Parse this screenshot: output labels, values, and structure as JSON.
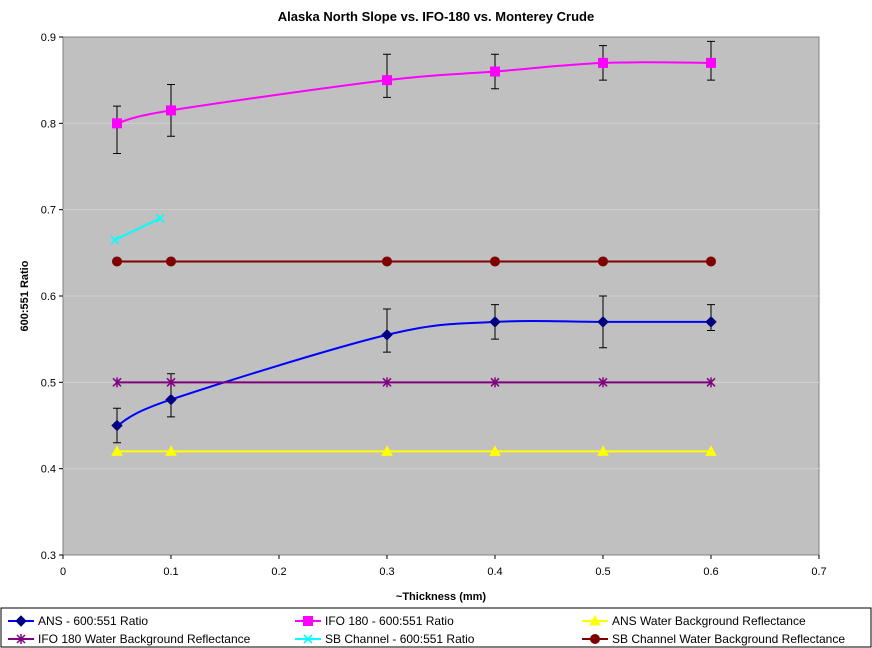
{
  "chart_data": {
    "type": "line",
    "title": "Alaska North Slope vs. IFO-180 vs. Monterey Crude",
    "xlabel": "~Thickness (mm)",
    "ylabel": "600:551 Ratio",
    "xlim": [
      0,
      0.7
    ],
    "ylim": [
      0.3,
      0.9
    ],
    "x_ticks": [
      "0",
      "0.1",
      "0.2",
      "0.3",
      "0.4",
      "0.5",
      "0.6",
      "0.7"
    ],
    "y_ticks": [
      "0.3",
      "0.4",
      "0.5",
      "0.6",
      "0.7",
      "0.8",
      "0.9"
    ],
    "grid": "horizontal",
    "legend_position": "bottom",
    "plot_background": "#c0c0c0",
    "series": [
      {
        "name": "ANS - 600:551 Ratio",
        "color": "#000080",
        "line_color": "#0000ff",
        "marker": "diamond",
        "smooth": true,
        "x": [
          0.05,
          0.1,
          0.3,
          0.4,
          0.5,
          0.6
        ],
        "y": [
          0.45,
          0.48,
          0.555,
          0.57,
          0.57,
          0.57
        ],
        "err_low": [
          0.43,
          0.46,
          0.535,
          0.55,
          0.54,
          0.56
        ],
        "err_high": [
          0.47,
          0.51,
          0.585,
          0.59,
          0.6,
          0.59
        ]
      },
      {
        "name": "IFO 180 - 600:551 Ratio",
        "color": "#ff00ff",
        "line_color": "#ff00ff",
        "marker": "square",
        "smooth": true,
        "x": [
          0.05,
          0.1,
          0.3,
          0.4,
          0.5,
          0.6
        ],
        "y": [
          0.8,
          0.815,
          0.85,
          0.86,
          0.87,
          0.87
        ],
        "err_low": [
          0.765,
          0.785,
          0.83,
          0.84,
          0.85,
          0.85
        ],
        "err_high": [
          0.82,
          0.845,
          0.88,
          0.88,
          0.89,
          0.895
        ]
      },
      {
        "name": "ANS Water Background Reflectance",
        "color": "#ffff00",
        "line_color": "#ffff00",
        "marker": "triangle",
        "smooth": false,
        "x": [
          0.05,
          0.1,
          0.3,
          0.4,
          0.5,
          0.6
        ],
        "y": [
          0.42,
          0.42,
          0.42,
          0.42,
          0.42,
          0.42
        ]
      },
      {
        "name": "IFO 180 Water Background Reflectance",
        "color": "#800080",
        "line_color": "#800080",
        "marker": "star",
        "smooth": false,
        "x": [
          0.05,
          0.1,
          0.3,
          0.4,
          0.5,
          0.6
        ],
        "y": [
          0.5,
          0.5,
          0.5,
          0.5,
          0.5,
          0.5
        ]
      },
      {
        "name": "SB Channel - 600:551 Ratio",
        "color": "#00ffff",
        "line_color": "#00ffff",
        "marker": "x",
        "smooth": false,
        "x": [
          0.048,
          0.09
        ],
        "y": [
          0.665,
          0.69
        ]
      },
      {
        "name": "SB Channel Water Background Reflectance",
        "color": "#800000",
        "line_color": "#800000",
        "marker": "circle",
        "smooth": false,
        "x": [
          0.05,
          0.1,
          0.3,
          0.4,
          0.5,
          0.6
        ],
        "y": [
          0.64,
          0.64,
          0.64,
          0.64,
          0.64,
          0.64
        ]
      }
    ]
  }
}
